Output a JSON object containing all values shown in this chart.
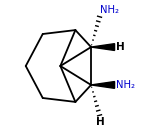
{
  "bg_color": "#ffffff",
  "line_color": "#000000",
  "text_color": "#0000cd",
  "h_color": "#000000",
  "nh2_label_1": "NH₂",
  "nh2_label_2": "NH₂",
  "h_label_1": "H",
  "h_label_2": "H",
  "figsize": [
    1.56,
    1.32
  ],
  "dpi": 100
}
